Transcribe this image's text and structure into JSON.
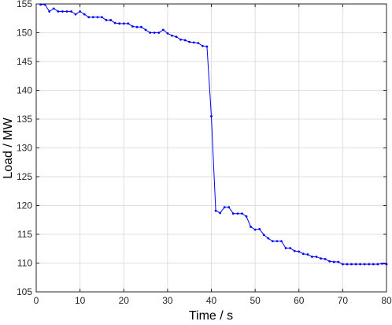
{
  "chart_data": {
    "type": "line",
    "xlabel": "Time / s",
    "ylabel": "Load / MW",
    "xlim": [
      0,
      80
    ],
    "ylim": [
      105,
      155
    ],
    "grid": true,
    "xticks": [
      "0",
      "10",
      "20",
      "30",
      "40",
      "50",
      "60",
      "70",
      "80"
    ],
    "yticks": [
      "105",
      "110",
      "115",
      "120",
      "125",
      "130",
      "135",
      "140",
      "145",
      "150",
      "155"
    ],
    "series": [
      {
        "color": "#0000ff",
        "marker": "dot",
        "x": [
          1,
          2,
          3,
          4,
          5,
          6,
          7,
          8,
          9,
          10,
          11,
          12,
          13,
          14,
          15,
          16,
          17,
          18,
          19,
          20,
          21,
          22,
          23,
          24,
          25,
          26,
          27,
          28,
          29,
          30,
          31,
          32,
          33,
          34,
          35,
          36,
          37,
          38,
          39,
          40,
          41,
          42,
          43,
          44,
          45,
          46,
          47,
          48,
          49,
          50,
          51,
          52,
          53,
          54,
          55,
          56,
          57,
          58,
          59,
          60,
          61,
          62,
          63,
          64,
          65,
          66,
          67,
          68,
          69,
          70,
          71,
          72,
          73,
          74,
          75,
          76,
          77,
          78,
          79,
          80
        ],
        "y": [
          154.9,
          154.9,
          153.7,
          154.2,
          153.7,
          153.7,
          153.7,
          153.7,
          153.2,
          153.7,
          153.2,
          152.7,
          152.7,
          152.7,
          152.7,
          152.2,
          152.2,
          151.7,
          151.6,
          151.6,
          151.6,
          151.1,
          151.0,
          151.0,
          150.5,
          150.0,
          150.0,
          150.0,
          150.5,
          149.9,
          149.5,
          149.3,
          148.8,
          148.7,
          148.4,
          148.3,
          148.2,
          147.7,
          147.6,
          135.5,
          119.1,
          118.7,
          119.7,
          119.7,
          118.6,
          118.6,
          118.6,
          118.1,
          116.3,
          115.8,
          115.9,
          114.9,
          114.3,
          113.8,
          113.8,
          113.8,
          112.6,
          112.6,
          112.1,
          112.0,
          111.6,
          111.5,
          111.1,
          111.1,
          110.8,
          110.7,
          110.3,
          110.2,
          110.2,
          109.8,
          109.8,
          109.8,
          109.8,
          109.8,
          109.8,
          109.8,
          109.8,
          109.8,
          109.9,
          109.8
        ]
      }
    ]
  }
}
